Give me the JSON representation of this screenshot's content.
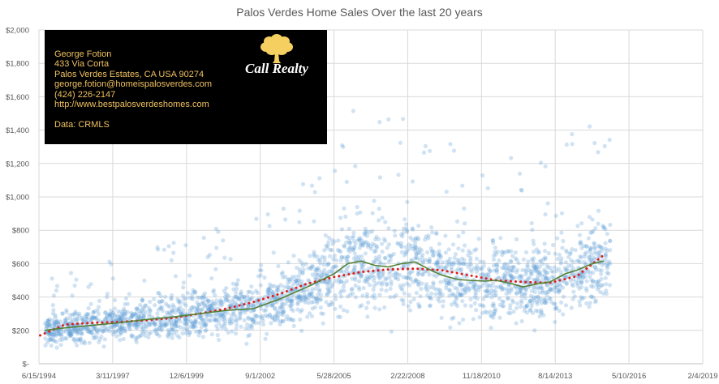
{
  "chart_data": {
    "type": "scatter",
    "title": "Palos Verdes Home Sales Over the last 20 years",
    "xlabel": "",
    "ylabel": "",
    "x_axis_ticks": [
      "6/15/1994",
      "3/11/1997",
      "12/6/1999",
      "9/1/2002",
      "5/28/2005",
      "2/22/2008",
      "11/18/2010",
      "8/14/2013",
      "5/10/2016",
      "2/4/2019"
    ],
    "y_axis_ticks": [
      "$-",
      "$200",
      "$400",
      "$600",
      "$800",
      "$1,000",
      "$1,200",
      "$1,400",
      "$1,600",
      "$1,800",
      "$2,000"
    ],
    "xlim": [
      "1994-06-15",
      "2019-02-04"
    ],
    "ylim": [
      0,
      2000
    ],
    "grid": true,
    "scatter_color": "#5b9bd5",
    "scatter_note_values": "individual sales, price per sq ft",
    "series": [
      {
        "name": "",
        "kind": "moving-average",
        "color": "#548235",
        "x": [
          "1994-09-01",
          "1995-06-01",
          "1996-06-01",
          "1997-06-01",
          "1998-06-01",
          "1999-06-01",
          "2000-06-01",
          "2001-06-01",
          "2002-06-01",
          "2003-06-01",
          "2004-06-01",
          "2005-06-01",
          "2005-12-01",
          "2006-06-01",
          "2006-12-01",
          "2007-06-01",
          "2007-12-01",
          "2008-06-01",
          "2009-01-01",
          "2009-06-01",
          "2010-01-01",
          "2010-06-01",
          "2011-01-01",
          "2011-06-01",
          "2012-01-01",
          "2012-06-01",
          "2013-01-01",
          "2013-06-01",
          "2014-01-01",
          "2014-06-01",
          "2015-01-01",
          "2015-06-01"
        ],
        "y": [
          200,
          215,
          230,
          245,
          265,
          280,
          300,
          320,
          330,
          390,
          460,
          540,
          600,
          615,
          590,
          580,
          600,
          610,
          560,
          530,
          505,
          500,
          495,
          500,
          480,
          460,
          480,
          490,
          540,
          560,
          600,
          615
        ]
      },
      {
        "name": "",
        "kind": "trendline",
        "color": "#e02020",
        "x": [
          "1994-07-01",
          "1995-06-01",
          "1996-06-01",
          "1997-06-01",
          "1998-06-01",
          "1999-06-01",
          "2000-06-01",
          "2001-06-01",
          "2002-06-01",
          "2003-06-01",
          "2004-06-01",
          "2005-06-01",
          "2006-06-01",
          "2007-06-01",
          "2008-06-01",
          "2009-06-01",
          "2010-06-01",
          "2011-06-01",
          "2012-06-01",
          "2013-06-01",
          "2014-06-01",
          "2015-06-01"
        ],
        "y": [
          170,
          235,
          245,
          250,
          260,
          275,
          300,
          330,
          370,
          420,
          480,
          520,
          550,
          565,
          570,
          560,
          530,
          500,
          490,
          485,
          525,
          650
        ]
      }
    ]
  },
  "infobox": {
    "lines": [
      "George Fotion",
      "433 Via Corta",
      "Palos Verdes Estates, CA USA 90274",
      "george.fotion@homeispalosverdes.com",
      "(424) 226-2147",
      "http://www.bestpalosverdeshomes.com"
    ],
    "data_source": "Data: CRMLS",
    "logo_text": "Call Realty",
    "logo_icon": "tree-icon",
    "logo_color": "#f5d060"
  }
}
